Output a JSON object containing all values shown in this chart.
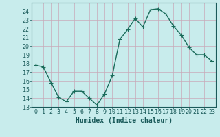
{
  "x": [
    0,
    1,
    2,
    3,
    4,
    5,
    6,
    7,
    8,
    9,
    10,
    11,
    12,
    13,
    14,
    15,
    16,
    17,
    18,
    19,
    20,
    21,
    22,
    23
  ],
  "y": [
    17.8,
    17.6,
    15.8,
    14.1,
    13.6,
    14.8,
    14.8,
    14.0,
    13.2,
    14.5,
    16.6,
    20.8,
    21.9,
    23.2,
    22.2,
    24.2,
    24.3,
    23.7,
    22.3,
    21.3,
    19.9,
    19.0,
    19.0,
    18.3
  ],
  "line_color": "#1a6b5a",
  "marker_color": "#1a6b5a",
  "bg_color": "#c8ecec",
  "grid_major_color": "#aed4d4",
  "grid_minor_color": "#bde0e0",
  "xlabel": "Humidex (Indice chaleur)",
  "ylim": [
    13,
    25
  ],
  "xlim": [
    -0.5,
    23.5
  ],
  "yticks": [
    13,
    14,
    15,
    16,
    17,
    18,
    19,
    20,
    21,
    22,
    23,
    24
  ],
  "xticks": [
    0,
    1,
    2,
    3,
    4,
    5,
    6,
    7,
    8,
    9,
    10,
    11,
    12,
    13,
    14,
    15,
    16,
    17,
    18,
    19,
    20,
    21,
    22,
    23
  ],
  "xlabel_fontsize": 7,
  "tick_fontsize": 6,
  "line_width": 1.0,
  "marker_size": 2.5
}
